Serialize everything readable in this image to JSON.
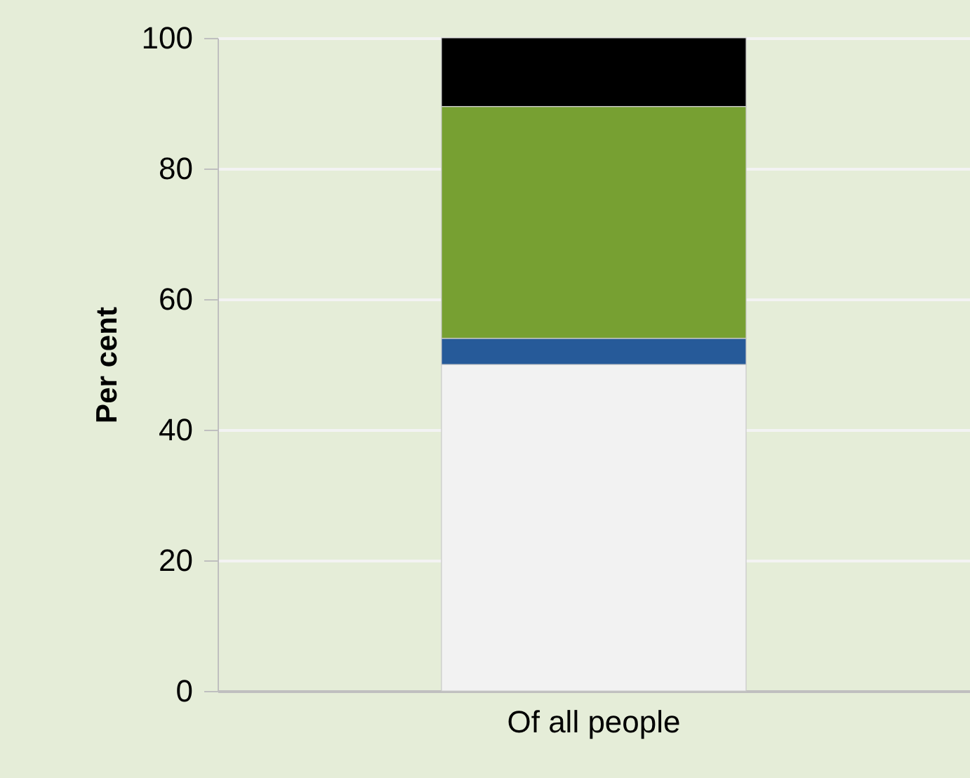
{
  "chart_data": {
    "type": "bar",
    "ylabel": "Per cent",
    "categories": [
      "Of all people"
    ],
    "stacked": true,
    "ylim": [
      0,
      100
    ],
    "yticks": [
      0,
      20,
      40,
      60,
      80,
      100
    ],
    "grid": "y",
    "legend": false,
    "series": [
      {
        "color": "#f2f2f2",
        "values": [
          50
        ]
      },
      {
        "color": "#265a99",
        "values": [
          4
        ]
      },
      {
        "color": "#77a032",
        "values": [
          35.5
        ]
      },
      {
        "color": "#000000",
        "values": [
          10.5
        ]
      }
    ]
  }
}
